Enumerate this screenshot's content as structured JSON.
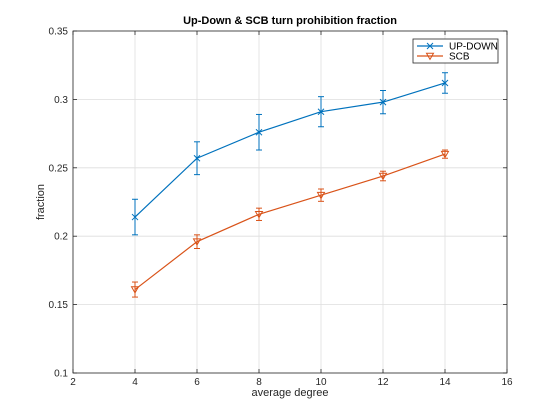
{
  "chart_data": {
    "type": "line",
    "title": "Up-Down & SCB turn prohibition fraction",
    "xlabel": "average degree",
    "ylabel": "fraction",
    "xlim": [
      2,
      16
    ],
    "ylim": [
      0.1,
      0.35
    ],
    "xticks": [
      2,
      4,
      6,
      8,
      10,
      12,
      14,
      16
    ],
    "yticks": [
      0.1,
      0.15,
      0.2,
      0.25,
      0.3,
      0.35
    ],
    "xtick_labels": [
      "2",
      "4",
      "6",
      "8",
      "10",
      "12",
      "14",
      "16"
    ],
    "ytick_labels": [
      "0.1",
      "0.15",
      "0.2",
      "0.25",
      "0.3",
      "0.35"
    ],
    "grid": true,
    "legend_position": "top-right",
    "x": [
      4,
      6,
      8,
      10,
      12,
      14
    ],
    "series": [
      {
        "name": "UP-DOWN",
        "color": "#0072bd",
        "marker": "x",
        "values": [
          0.214,
          0.257,
          0.276,
          0.291,
          0.298,
          0.312
        ],
        "errors": [
          0.013,
          0.012,
          0.013,
          0.011,
          0.0085,
          0.0075
        ]
      },
      {
        "name": "SCB",
        "color": "#d95319",
        "marker": "triangle-down",
        "values": [
          0.161,
          0.196,
          0.216,
          0.23,
          0.244,
          0.26
        ],
        "errors": [
          0.0055,
          0.005,
          0.0045,
          0.0045,
          0.0035,
          0.003
        ]
      }
    ]
  }
}
